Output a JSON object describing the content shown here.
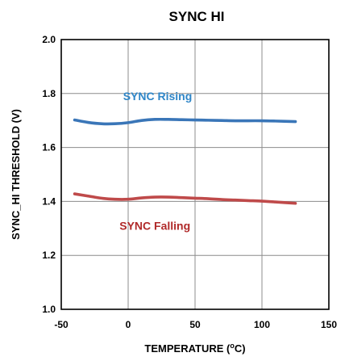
{
  "chart_data": {
    "type": "line",
    "title": "SYNC HI",
    "xlabel": "TEMPERATURE (°C)",
    "xlabel_parts": [
      "TEMPERATURE (",
      "o",
      "C)"
    ],
    "ylabel": "SYNC_HI THRESHOLD (V)",
    "xlim": [
      -50,
      150
    ],
    "ylim": [
      1.0,
      2.0
    ],
    "xticks": [
      -50,
      0,
      50,
      100,
      150
    ],
    "xtick_labels": [
      "-50",
      "0",
      "50",
      "100",
      "150"
    ],
    "yticks": [
      1.0,
      1.2,
      1.4,
      1.6,
      1.8,
      2.0
    ],
    "ytick_labels": [
      "1.0",
      "1.2",
      "1.4",
      "1.6",
      "1.8",
      "2.0"
    ],
    "grid": true,
    "legend": "none",
    "series": [
      {
        "name": "SYNC Rising",
        "color": "#3a76b8",
        "x": [
          -40,
          -30,
          -20,
          -10,
          0,
          10,
          20,
          30,
          40,
          50,
          60,
          70,
          80,
          90,
          100,
          110,
          125
        ],
        "y": [
          1.702,
          1.693,
          1.688,
          1.688,
          1.692,
          1.7,
          1.704,
          1.704,
          1.703,
          1.702,
          1.701,
          1.7,
          1.699,
          1.699,
          1.699,
          1.698,
          1.696
        ]
      },
      {
        "name": "SYNC Falling",
        "color": "#bf4a4a",
        "x": [
          -40,
          -30,
          -20,
          -10,
          0,
          10,
          20,
          30,
          40,
          50,
          60,
          70,
          80,
          90,
          100,
          110,
          125
        ],
        "y": [
          1.428,
          1.42,
          1.412,
          1.408,
          1.408,
          1.413,
          1.416,
          1.416,
          1.414,
          1.412,
          1.41,
          1.407,
          1.405,
          1.403,
          1.401,
          1.398,
          1.393
        ]
      }
    ],
    "annotations": [
      {
        "text": "SYNC Rising",
        "x": 22,
        "y": 1.79,
        "color": "#2f86c8"
      },
      {
        "text": "SYNC Falling",
        "x": 20,
        "y": 1.31,
        "color": "#b02a2a"
      }
    ]
  }
}
